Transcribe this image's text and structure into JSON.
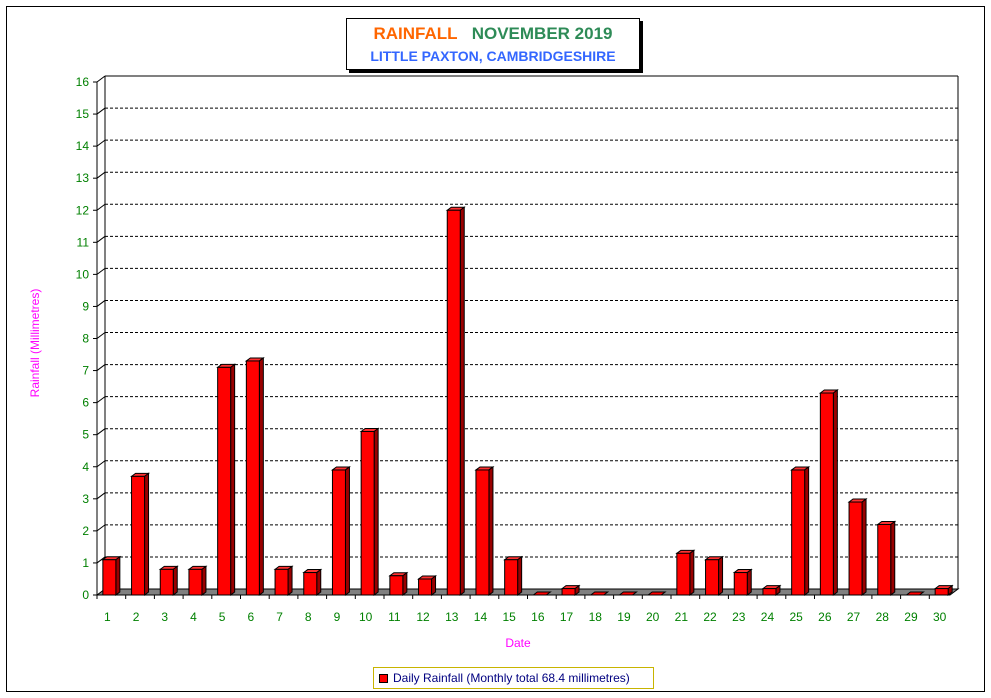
{
  "title": {
    "part1": "RAINFALL",
    "part2": "NOVEMBER 2019",
    "subtitle": "LITTLE PAXTON, CAMBRIDGESHIRE"
  },
  "colors": {
    "title_part1": "#ff6600",
    "title_part2": "#2e8b57",
    "subtitle": "#3366ff",
    "bar": "#ff0000",
    "axis_label": "#ff00ff",
    "tick_label": "#008000",
    "legend_text": "#000080"
  },
  "legend": {
    "label": "Daily Rainfall (Monthly total 68.4 millimetres)"
  },
  "chart_data": {
    "type": "bar",
    "xlabel": "Date",
    "ylabel": "Rainfall  (Millimetres)",
    "ylim": [
      0,
      16
    ],
    "yticks": [
      0,
      1,
      2,
      3,
      4,
      5,
      6,
      7,
      8,
      9,
      10,
      11,
      12,
      13,
      14,
      15,
      16
    ],
    "grid": true,
    "legend_position": "bottom-center",
    "categories": [
      "1",
      "2",
      "3",
      "4",
      "5",
      "6",
      "7",
      "8",
      "9",
      "10",
      "11",
      "12",
      "13",
      "14",
      "15",
      "16",
      "17",
      "18",
      "19",
      "20",
      "21",
      "22",
      "23",
      "24",
      "25",
      "26",
      "27",
      "28",
      "29",
      "30"
    ],
    "series": [
      {
        "name": "Daily Rainfall (Monthly total 68.4 millimetres)",
        "values": [
          1.1,
          3.7,
          0.8,
          0.8,
          7.1,
          7.3,
          0.8,
          0.7,
          3.9,
          5.1,
          0.6,
          0.5,
          12.0,
          3.9,
          1.1,
          0.0,
          0.2,
          0.0,
          0.0,
          0.0,
          1.3,
          1.1,
          0.7,
          0.2,
          3.9,
          6.3,
          2.9,
          2.2,
          0.0,
          0.2
        ]
      }
    ]
  }
}
